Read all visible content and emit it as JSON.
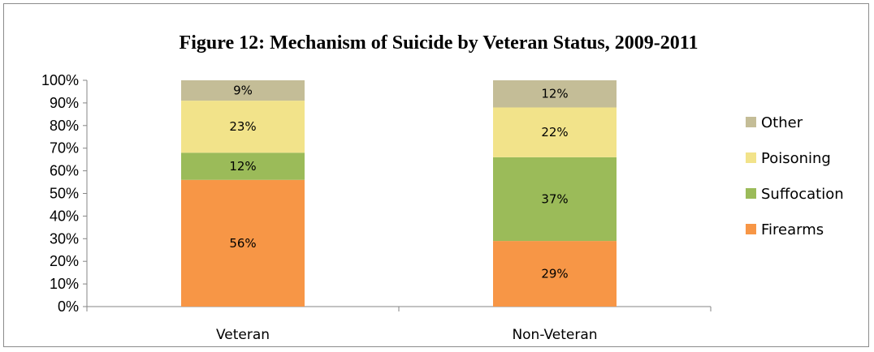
{
  "chart_data": {
    "type": "bar",
    "stacked": true,
    "title": "Figure 12: Mechanism of Suicide by Veteran Status, 2009-2011",
    "xlabel": "",
    "ylabel": "",
    "categories": [
      "Veteran",
      "Non-Veteran"
    ],
    "y_ticks": [
      "0%",
      "10%",
      "20%",
      "30%",
      "40%",
      "50%",
      "60%",
      "70%",
      "80%",
      "90%",
      "100%"
    ],
    "ylim": [
      0,
      100
    ],
    "grid": false,
    "legend_position": "right",
    "series": [
      {
        "name": "Firearms",
        "values": [
          56,
          29
        ],
        "labels": [
          "56%",
          "29%"
        ],
        "color": "#f79646"
      },
      {
        "name": "Suffocation",
        "values": [
          12,
          37
        ],
        "labels": [
          "12%",
          "37%"
        ],
        "color": "#9bbb59"
      },
      {
        "name": "Poisoning",
        "values": [
          23,
          22
        ],
        "labels": [
          "23%",
          "22%"
        ],
        "color": "#f2e38a"
      },
      {
        "name": "Other",
        "values": [
          9,
          12
        ],
        "labels": [
          "9%",
          "12%"
        ],
        "color": "#c4bd97"
      }
    ],
    "legend_order": [
      "Other",
      "Poisoning",
      "Suffocation",
      "Firearms"
    ]
  }
}
